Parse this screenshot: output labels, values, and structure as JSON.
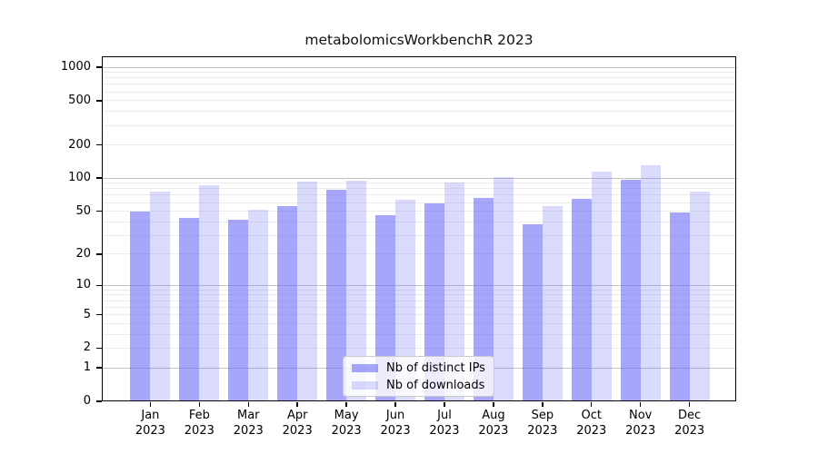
{
  "chart_data": {
    "type": "bar",
    "title": "metabolomicsWorkbenchR 2023",
    "categories": [
      "Jan",
      "Feb",
      "Mar",
      "Apr",
      "May",
      "Jun",
      "Jul",
      "Aug",
      "Sep",
      "Oct",
      "Nov",
      "Dec"
    ],
    "category_year": "2023",
    "series": [
      {
        "name": "Nb of distinct IPs",
        "color_rgb": "106,106,248",
        "alpha": 0.6,
        "values": [
          50,
          43,
          42,
          56,
          78,
          46,
          59,
          66,
          38,
          65,
          96,
          49
        ]
      },
      {
        "name": "Nb of downloads",
        "color_rgb": "106,106,248",
        "alpha": 0.25,
        "values": [
          76,
          86,
          52,
          93,
          94,
          63,
          92,
          102,
          56,
          115,
          130,
          75
        ]
      }
    ],
    "yscale": "log1p",
    "ylim": [
      0,
      1230
    ],
    "ytick_labels": [
      "0",
      "1",
      "2",
      "5",
      "10",
      "20",
      "50",
      "100",
      "200",
      "500",
      "1000"
    ],
    "ytick_values": [
      0,
      1,
      2,
      5,
      10,
      20,
      50,
      100,
      200,
      500,
      1000
    ],
    "major_gridlines": [
      1,
      10,
      100,
      1000
    ],
    "minor_gridlines": [
      2,
      3,
      4,
      5,
      6,
      7,
      8,
      9,
      20,
      30,
      40,
      50,
      60,
      70,
      80,
      90,
      200,
      300,
      400,
      500,
      600,
      700,
      800,
      900
    ],
    "grid_color_major": "#c3c3c3",
    "grid_color_minor": "#ececec",
    "legend_position": "lower center",
    "grid": "on"
  }
}
